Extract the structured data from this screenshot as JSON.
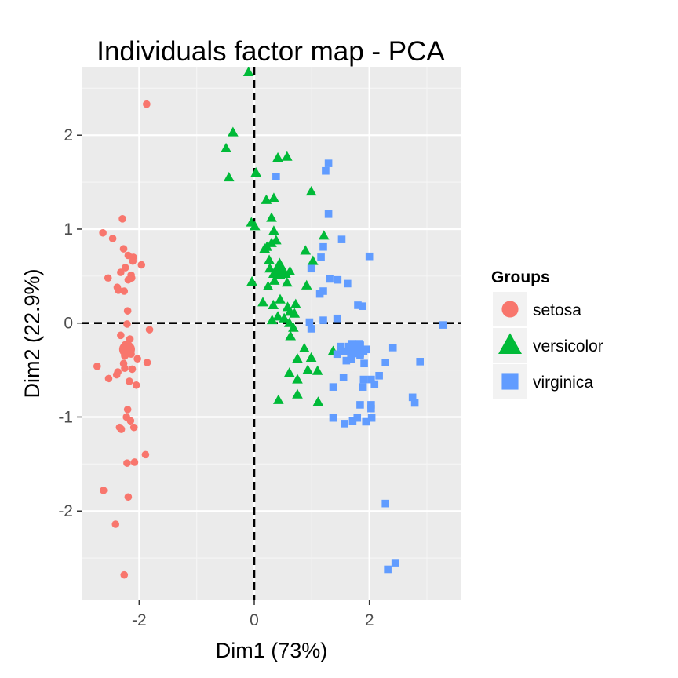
{
  "chart_data": {
    "type": "scatter",
    "title": "Individuals factor map - PCA",
    "xlabel": "Dim1 (73%)",
    "ylabel": "Dim2 (22.9%)",
    "xlim": [
      -3.0,
      3.6
    ],
    "ylim": [
      -2.95,
      2.72
    ],
    "x_ticks": [
      -2,
      0,
      2
    ],
    "y_ticks": [
      -2,
      -1,
      0,
      1,
      2
    ],
    "x_tick_labels": [
      "-2",
      "0",
      "2"
    ],
    "y_tick_labels": [
      "-2",
      "-1",
      "0",
      "1",
      "2"
    ],
    "grid": true,
    "reference_lines": {
      "x": 0,
      "y": 0,
      "style": "dashed"
    },
    "legend": {
      "title": "Groups",
      "position": "right"
    },
    "series": [
      {
        "name": "setosa",
        "shape": "circle",
        "color": "#F8766D",
        "centroid": [
          -2.21,
          -0.28
        ],
        "points": [
          [
            -1.87,
            2.33
          ],
          [
            -2.29,
            1.11
          ],
          [
            -2.63,
            0.96
          ],
          [
            -2.46,
            0.9
          ],
          [
            -2.27,
            0.79
          ],
          [
            -2.19,
            0.72
          ],
          [
            -2.1,
            0.7
          ],
          [
            -2.11,
            0.66
          ],
          [
            -1.96,
            0.62
          ],
          [
            -2.24,
            0.59
          ],
          [
            -2.32,
            0.54
          ],
          [
            -2.14,
            0.51
          ],
          [
            -2.54,
            0.48
          ],
          [
            -2.19,
            0.46
          ],
          [
            -2.13,
            0.48
          ],
          [
            -2.38,
            0.38
          ],
          [
            -2.36,
            0.35
          ],
          [
            -2.26,
            0.34
          ],
          [
            -2.2,
            0.13
          ],
          [
            -2.21,
            -0.01
          ],
          [
            -1.82,
            -0.07
          ],
          [
            -2.32,
            -0.13
          ],
          [
            -2.16,
            -0.17
          ],
          [
            -2.24,
            -0.23
          ],
          [
            -2.17,
            -0.25
          ],
          [
            -2.28,
            -0.28
          ],
          [
            -2.14,
            -0.33
          ],
          [
            -2.25,
            -0.35
          ],
          [
            -2.03,
            -0.38
          ],
          [
            -2.27,
            -0.43
          ],
          [
            -1.86,
            -0.42
          ],
          [
            -2.73,
            -0.46
          ],
          [
            -2.25,
            -0.48
          ],
          [
            -2.12,
            -0.49
          ],
          [
            -2.37,
            -0.52
          ],
          [
            -2.53,
            -0.59
          ],
          [
            -2.17,
            -0.62
          ],
          [
            -2.05,
            -0.66
          ],
          [
            -2.39,
            -0.55
          ],
          [
            -2.2,
            -0.92
          ],
          [
            -2.22,
            -1.0
          ],
          [
            -2.15,
            -1.04
          ],
          [
            -2.34,
            -1.11
          ],
          [
            -2.31,
            -1.13
          ],
          [
            -2.09,
            -1.11
          ],
          [
            -1.89,
            -1.4
          ],
          [
            -2.08,
            -1.48
          ],
          [
            -2.21,
            -1.49
          ],
          [
            -2.62,
            -1.78
          ],
          [
            -2.19,
            -1.85
          ],
          [
            -2.41,
            -2.14
          ],
          [
            -2.26,
            -2.68
          ]
        ]
      },
      {
        "name": "versicolor",
        "shape": "triangle",
        "color": "#00BA38",
        "centroid": [
          0.44,
          0.57
        ],
        "points": [
          [
            -0.1,
            2.67
          ],
          [
            -0.37,
            2.03
          ],
          [
            -0.49,
            1.86
          ],
          [
            0.41,
            1.76
          ],
          [
            0.57,
            1.77
          ],
          [
            -0.44,
            1.55
          ],
          [
            0.03,
            1.6
          ],
          [
            0.99,
            1.4
          ],
          [
            0.21,
            1.31
          ],
          [
            0.34,
            1.33
          ],
          [
            0.3,
            1.12
          ],
          [
            -0.05,
            1.07
          ],
          [
            0.01,
            1.03
          ],
          [
            0.34,
            0.98
          ],
          [
            1.21,
            0.93
          ],
          [
            0.38,
            0.88
          ],
          [
            0.22,
            0.81
          ],
          [
            0.3,
            0.85
          ],
          [
            0.89,
            0.77
          ],
          [
            0.26,
            0.67
          ],
          [
            0.18,
            0.79
          ],
          [
            1.02,
            0.66
          ],
          [
            0.27,
            0.58
          ],
          [
            0.4,
            0.57
          ],
          [
            0.5,
            0.55
          ],
          [
            0.62,
            0.55
          ],
          [
            0.45,
            0.51
          ],
          [
            0.35,
            0.45
          ],
          [
            0.57,
            0.43
          ],
          [
            -0.04,
            0.44
          ],
          [
            0.24,
            0.39
          ],
          [
            0.91,
            0.4
          ],
          [
            0.15,
            0.22
          ],
          [
            0.33,
            0.19
          ],
          [
            0.45,
            0.25
          ],
          [
            0.58,
            0.17
          ],
          [
            0.72,
            0.2
          ],
          [
            0.62,
            0.12
          ],
          [
            0.52,
            0.05
          ],
          [
            0.61,
            0.0
          ],
          [
            0.68,
            -0.05
          ],
          [
            0.7,
            0.1
          ],
          [
            0.41,
            0.07
          ],
          [
            0.31,
            0.03
          ],
          [
            0.63,
            -0.14
          ],
          [
            0.87,
            -0.27
          ],
          [
            1.37,
            -0.3
          ],
          [
            0.75,
            -0.38
          ],
          [
            0.99,
            -0.37
          ],
          [
            0.93,
            -0.5
          ],
          [
            1.1,
            -0.51
          ],
          [
            0.61,
            -0.53
          ],
          [
            0.75,
            -0.6
          ],
          [
            0.42,
            -0.82
          ],
          [
            0.75,
            -0.76
          ],
          [
            1.11,
            -0.84
          ]
        ]
      },
      {
        "name": "virginica",
        "shape": "square",
        "color": "#619CFF",
        "centroid": [
          1.77,
          -0.28
        ],
        "points": [
          [
            1.29,
            1.7
          ],
          [
            1.24,
            1.62
          ],
          [
            0.38,
            1.56
          ],
          [
            1.29,
            1.16
          ],
          [
            1.52,
            0.89
          ],
          [
            1.2,
            0.81
          ],
          [
            1.16,
            0.7
          ],
          [
            2.0,
            0.71
          ],
          [
            0.99,
            0.58
          ],
          [
            1.31,
            0.47
          ],
          [
            1.45,
            0.46
          ],
          [
            1.62,
            0.42
          ],
          [
            1.2,
            0.34
          ],
          [
            1.14,
            0.31
          ],
          [
            1.8,
            0.19
          ],
          [
            1.88,
            0.18
          ],
          [
            1.44,
            0.05
          ],
          [
            1.2,
            0.03
          ],
          [
            0.96,
            0.01
          ],
          [
            0.99,
            -0.06
          ],
          [
            3.28,
            -0.02
          ],
          [
            1.5,
            -0.25
          ],
          [
            1.44,
            -0.33
          ],
          [
            1.57,
            -0.3
          ],
          [
            1.64,
            -0.25
          ],
          [
            1.7,
            -0.22
          ],
          [
            1.77,
            -0.24
          ],
          [
            1.82,
            -0.22
          ],
          [
            1.6,
            -0.4
          ],
          [
            1.68,
            -0.38
          ],
          [
            1.84,
            -0.34
          ],
          [
            1.9,
            -0.3
          ],
          [
            1.95,
            -0.28
          ],
          [
            2.41,
            -0.26
          ],
          [
            1.91,
            -0.43
          ],
          [
            2.28,
            -0.42
          ],
          [
            2.88,
            -0.41
          ],
          [
            2.17,
            -0.56
          ],
          [
            1.9,
            -0.6
          ],
          [
            1.55,
            -0.58
          ],
          [
            1.37,
            -0.68
          ],
          [
            1.89,
            -0.68
          ],
          [
            2.03,
            -0.6
          ],
          [
            2.09,
            -0.65
          ],
          [
            2.75,
            -0.79
          ],
          [
            2.79,
            -0.85
          ],
          [
            1.84,
            -0.87
          ],
          [
            2.03,
            -0.87
          ],
          [
            2.03,
            -0.91
          ],
          [
            1.37,
            -1.01
          ],
          [
            1.79,
            -1.01
          ],
          [
            2.04,
            -1.01
          ],
          [
            1.94,
            -1.05
          ],
          [
            1.57,
            -1.07
          ],
          [
            1.71,
            -1.04
          ],
          [
            2.28,
            -1.92
          ],
          [
            2.45,
            -2.55
          ],
          [
            2.32,
            -2.62
          ]
        ]
      }
    ]
  }
}
